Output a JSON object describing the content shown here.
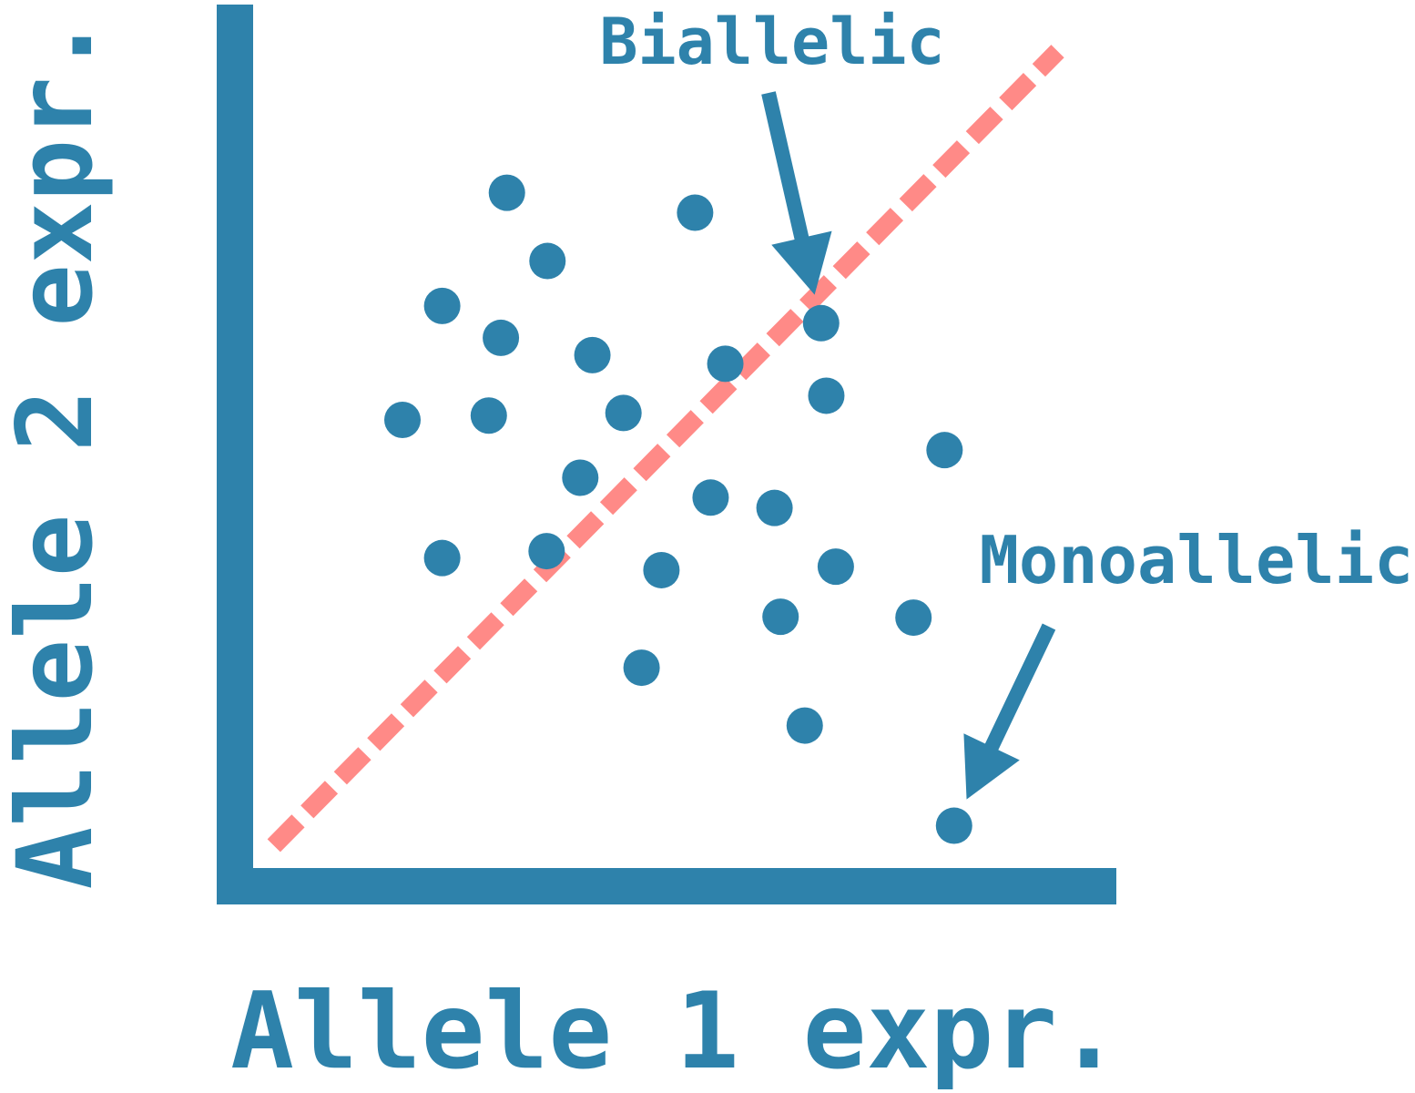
{
  "colors": {
    "axis": "#2e82ab",
    "points": "#2e82ab",
    "diagonal": "#ff8a87",
    "annotation": "#2e82ab"
  },
  "chart_data": {
    "type": "scatter",
    "xlabel": "Allele 1 expr.",
    "ylabel": "Allele 2 expr.",
    "xlim": [
      0,
      100
    ],
    "ylim": [
      0,
      100
    ],
    "grid": false,
    "ticks": false,
    "reference_line": {
      "style": "dashed",
      "points": [
        [
          2.4,
          2.6
        ],
        [
          93.2,
          94.6
        ]
      ]
    },
    "points": [
      {
        "x": 29.4,
        "y": 78.2
      },
      {
        "x": 51.2,
        "y": 75.9
      },
      {
        "x": 34.1,
        "y": 70.3
      },
      {
        "x": 21.9,
        "y": 65.1
      },
      {
        "x": 28.7,
        "y": 61.4
      },
      {
        "x": 39.3,
        "y": 59.4
      },
      {
        "x": 54.7,
        "y": 58.4
      },
      {
        "x": 66.4,
        "y": 54.7
      },
      {
        "x": 17.3,
        "y": 51.9
      },
      {
        "x": 27.3,
        "y": 52.4
      },
      {
        "x": 42.9,
        "y": 52.7
      },
      {
        "x": 80.1,
        "y": 48.4
      },
      {
        "x": 37.9,
        "y": 45.2
      },
      {
        "x": 53.0,
        "y": 42.9
      },
      {
        "x": 60.4,
        "y": 41.7
      },
      {
        "x": 21.9,
        "y": 35.9
      },
      {
        "x": 34.0,
        "y": 36.7
      },
      {
        "x": 47.3,
        "y": 34.5
      },
      {
        "x": 67.5,
        "y": 34.9
      },
      {
        "x": 61.1,
        "y": 29.1
      },
      {
        "x": 76.5,
        "y": 29.0
      },
      {
        "x": 45.0,
        "y": 23.2
      },
      {
        "x": 63.9,
        "y": 16.5
      },
      {
        "x": 81.2,
        "y": 4.9
      },
      {
        "x": 65.8,
        "y": 63.1
      }
    ],
    "annotations": [
      {
        "text": "Biallelic",
        "points_to": [
          65.8,
          63.1
        ]
      },
      {
        "text": "Monoallelic",
        "points_to": [
          81.2,
          4.9
        ]
      }
    ]
  }
}
